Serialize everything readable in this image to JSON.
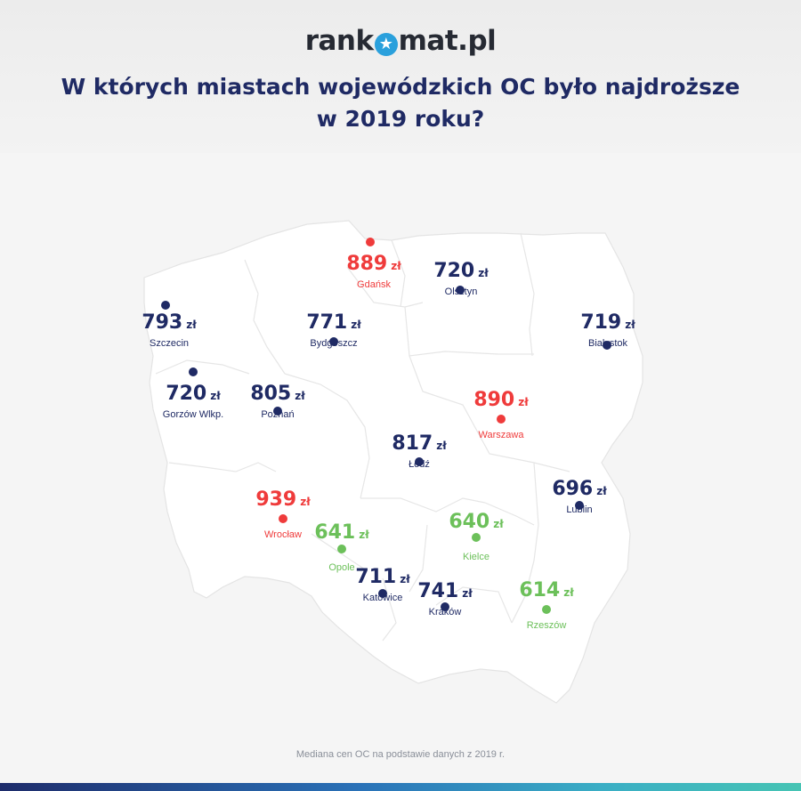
{
  "logo": {
    "left": "rank",
    "star": "★",
    "right": "mat.pl"
  },
  "title": "W których miastach wojewódzkich OC było najdroższe w 2019 roku?",
  "unit": "zł",
  "colors": {
    "high": "#ef3b3b",
    "mid": "#1f2a64",
    "low": "#6cc05a",
    "map": "#ffffff",
    "border": "#e2e2e2"
  },
  "cities": [
    {
      "name": "Gdańsk",
      "price": "889",
      "level": "high"
    },
    {
      "name": "Olsztyn",
      "price": "720",
      "level": "mid"
    },
    {
      "name": "Szczecin",
      "price": "793",
      "level": "mid"
    },
    {
      "name": "Bydgoszcz",
      "price": "771",
      "level": "mid"
    },
    {
      "name": "Białystok",
      "price": "719",
      "level": "mid"
    },
    {
      "name": "Gorzów Wlkp.",
      "price": "720",
      "level": "mid"
    },
    {
      "name": "Poznań",
      "price": "805",
      "level": "mid"
    },
    {
      "name": "Warszawa",
      "price": "890",
      "level": "high"
    },
    {
      "name": "Łódź",
      "price": "817",
      "level": "mid"
    },
    {
      "name": "Lublin",
      "price": "696",
      "level": "mid"
    },
    {
      "name": "Wrocław",
      "price": "939",
      "level": "high"
    },
    {
      "name": "Opole",
      "price": "641",
      "level": "low"
    },
    {
      "name": "Kielce",
      "price": "640",
      "level": "low"
    },
    {
      "name": "Katowice",
      "price": "711",
      "level": "mid"
    },
    {
      "name": "Kraków",
      "price": "741",
      "level": "mid"
    },
    {
      "name": "Rzeszów",
      "price": "614",
      "level": "low"
    }
  ],
  "footnote": "Mediana cen OC na podstawie danych z 2019 r."
}
